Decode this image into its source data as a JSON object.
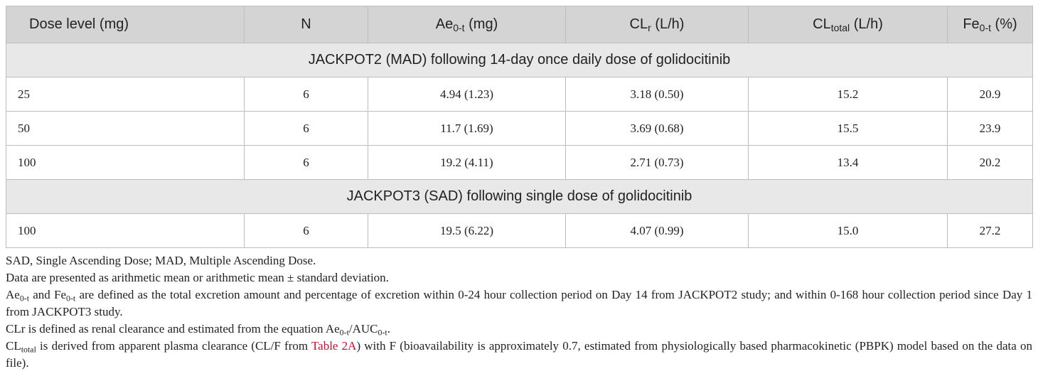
{
  "table": {
    "header": [
      [
        {
          "text": "Dose level (mg)"
        }
      ],
      [
        {
          "text": "N"
        }
      ],
      [
        {
          "text": "Ae"
        },
        {
          "text": "0-t",
          "style": "sub"
        },
        {
          "text": " (mg)"
        }
      ],
      [
        {
          "text": "CL"
        },
        {
          "text": "r",
          "style": "sub"
        },
        {
          "text": " (L/h)"
        }
      ],
      [
        {
          "text": "CL"
        },
        {
          "text": "total",
          "style": "sub"
        },
        {
          "text": " (L/h)"
        }
      ],
      [
        {
          "text": "Fe"
        },
        {
          "text": "0-t",
          "style": "sub"
        },
        {
          "text": " (%)"
        }
      ]
    ],
    "body": [
      {
        "section": "JACKPOT2 (MAD) following 14-day once daily dose of golidocitinib"
      },
      {
        "cells": [
          "25",
          "6",
          "4.94 (1.23)",
          "3.18 (0.50)",
          "15.2",
          "20.9"
        ]
      },
      {
        "cells": [
          "50",
          "6",
          "11.7 (1.69)",
          "3.69 (0.68)",
          "15.5",
          "23.9"
        ]
      },
      {
        "cells": [
          "100",
          "6",
          "19.2 (4.11)",
          "2.71 (0.73)",
          "13.4",
          "20.2"
        ]
      },
      {
        "section": "JACKPOT3 (SAD) following single dose of golidocitinib"
      },
      {
        "cells": [
          "100",
          "6",
          "19.5 (6.22)",
          "4.07 (0.99)",
          "15.0",
          "27.2"
        ]
      }
    ]
  },
  "footnotes": [
    [
      {
        "text": "SAD, Single Ascending Dose; MAD, Multiple Ascending Dose."
      }
    ],
    [
      {
        "text": "Data are presented as arithmetic mean or arithmetic mean ± standard deviation."
      }
    ],
    [
      {
        "text": "Ae"
      },
      {
        "text": "0-t",
        "style": "sub"
      },
      {
        "text": " and Fe"
      },
      {
        "text": "0-t",
        "style": "sub"
      },
      {
        "text": " are defined as the total excretion amount and percentage of excretion within 0-24 hour collection period on Day 14 from JACKPOT2 study; and within 0-168 hour collection period since Day 1 from JACKPOT3 study."
      }
    ],
    [
      {
        "text": "CLr is defined as renal clearance and estimated from the equation Ae"
      },
      {
        "text": "0-t",
        "style": "sub"
      },
      {
        "text": "/AUC"
      },
      {
        "text": "0-t",
        "style": "sub"
      },
      {
        "text": "."
      }
    ],
    [
      {
        "text": "CL"
      },
      {
        "text": "total",
        "style": "sub"
      },
      {
        "text": " is derived from apparent plasma clearance (CL/F from "
      },
      {
        "text": "Table 2A",
        "style": "link"
      },
      {
        "text": ") with F (bioavailability is approximately 0.7, estimated from physiologically based pharmacokinetic (PBPK) model based on the data on file)."
      }
    ]
  ]
}
